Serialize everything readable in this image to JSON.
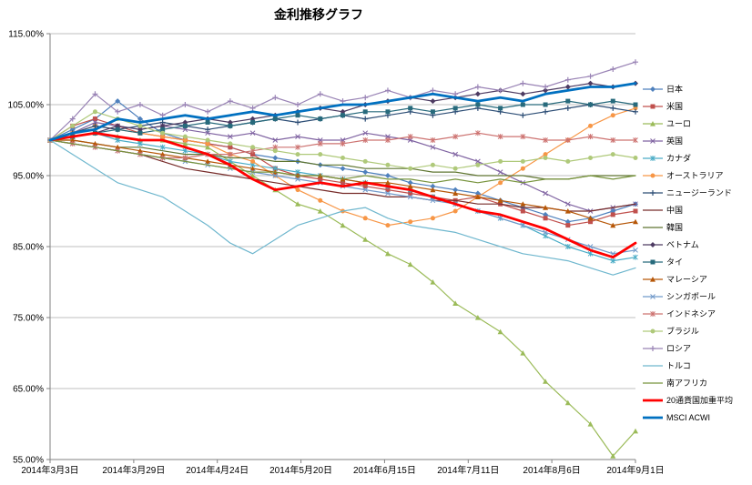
{
  "chart_data": {
    "type": "line",
    "title": "金利推移グラフ",
    "xlabel": "",
    "ylabel": "",
    "grid": true,
    "legend_position": "right",
    "ylim": [
      55,
      115
    ],
    "yticks": [
      55,
      65,
      75,
      85,
      95,
      105,
      115
    ],
    "ytick_labels": [
      "55.00%",
      "65.00%",
      "75.00%",
      "85.00%",
      "95.00%",
      "105.00%",
      "115.00%"
    ],
    "xtick_labels": [
      "2014年3月3日",
      "2014年3月29日",
      "2014年4月24日",
      "2014年5月20日",
      "2014年6月15日",
      "2014年7月11日",
      "2014年8月6日",
      "2014年9月1日"
    ],
    "xtick_pos": [
      0,
      0.1429,
      0.2857,
      0.4286,
      0.5714,
      0.7143,
      0.8571,
      1
    ],
    "x": [
      "2014-03-03",
      "2014-03-10",
      "2014-03-17",
      "2014-03-24",
      "2014-03-31",
      "2014-04-07",
      "2014-04-14",
      "2014-04-21",
      "2014-04-28",
      "2014-05-05",
      "2014-05-12",
      "2014-05-19",
      "2014-05-26",
      "2014-06-02",
      "2014-06-09",
      "2014-06-16",
      "2014-06-23",
      "2014-06-30",
      "2014-07-07",
      "2014-07-14",
      "2014-07-21",
      "2014-07-28",
      "2014-08-04",
      "2014-08-11",
      "2014-08-18",
      "2014-08-25",
      "2014-09-01"
    ],
    "series": [
      {
        "name": "日本",
        "key": "japan",
        "color": "#4F81BD",
        "marker": "diamond",
        "width": 1.2,
        "values": [
          100,
          101.5,
          103,
          105.5,
          103,
          101,
          100,
          99.5,
          99,
          98,
          97.5,
          97,
          96.5,
          96,
          95.5,
          95,
          94,
          93.5,
          93,
          92.5,
          91.5,
          90.5,
          89.5,
          88.5,
          89,
          90,
          91
        ]
      },
      {
        "name": "米国",
        "key": "usa",
        "color": "#C0504D",
        "marker": "square",
        "width": 1.2,
        "values": [
          100,
          102,
          103,
          102,
          101,
          100.5,
          100,
          99.5,
          99,
          98,
          96,
          95,
          94.5,
          94,
          93.5,
          93,
          92.5,
          92,
          91.5,
          92,
          91,
          90,
          89,
          88,
          88.5,
          89.5,
          90
        ]
      },
      {
        "name": "ユーロ",
        "key": "euro",
        "color": "#9BBB59",
        "marker": "triangle",
        "width": 1.2,
        "values": [
          100,
          100.5,
          101,
          100.5,
          100,
          100,
          99.5,
          99,
          97,
          95,
          93,
          91,
          90,
          88,
          86,
          84,
          82.5,
          80,
          77,
          75,
          73,
          70,
          66,
          63,
          60,
          55.5,
          59
        ]
      },
      {
        "name": "英国",
        "key": "uk",
        "color": "#8064A2",
        "marker": "x",
        "width": 1.2,
        "values": [
          100,
          101,
          102.5,
          102,
          101.5,
          102,
          101.5,
          101,
          100.5,
          101,
          100,
          100.5,
          100,
          100,
          101,
          100.5,
          100,
          99,
          98,
          97,
          95.5,
          94,
          92.5,
          91,
          90,
          90.5,
          91
        ]
      },
      {
        "name": "カナダ",
        "key": "canada",
        "color": "#4BACC6",
        "marker": "asterisk",
        "width": 1.2,
        "values": [
          100,
          100.5,
          101,
          100,
          99.5,
          99,
          98.5,
          98,
          97,
          96.5,
          96,
          95.5,
          95,
          94.5,
          94,
          93.5,
          93,
          92,
          91,
          90,
          89,
          88,
          86.5,
          85,
          84,
          83,
          83.5
        ]
      },
      {
        "name": "オーストラリア",
        "key": "australia",
        "color": "#F79646",
        "marker": "circle",
        "width": 1.2,
        "values": [
          100,
          101,
          102,
          101.5,
          101,
          100.5,
          100,
          99.5,
          98,
          97,
          95,
          93,
          91.5,
          90,
          89,
          88,
          88.5,
          89,
          90,
          92,
          94,
          96,
          98,
          100,
          102,
          103.5,
          104.5
        ]
      },
      {
        "name": "ニュージーランド",
        "key": "new-zealand",
        "color": "#2C4D75",
        "marker": "plus",
        "width": 1.2,
        "values": [
          100,
          101,
          102,
          101.5,
          102,
          102.5,
          102,
          101.5,
          102,
          102.5,
          103,
          102.5,
          103,
          103.5,
          103,
          103.5,
          104,
          103.5,
          104,
          104.5,
          104,
          103.5,
          104,
          104.5,
          105,
          104.5,
          104
        ]
      },
      {
        "name": "中国",
        "key": "china",
        "color": "#772C2A",
        "marker": null,
        "width": 1.2,
        "values": [
          100,
          99.5,
          99,
          98.5,
          98,
          97,
          96,
          95.5,
          95,
          94.5,
          94,
          93.5,
          93,
          92.5,
          92.5,
          92,
          92,
          91.5,
          91.5,
          91,
          91,
          90.5,
          90.5,
          90,
          90,
          90.5,
          91
        ]
      },
      {
        "name": "韓国",
        "key": "korea",
        "color": "#5F7530",
        "marker": null,
        "width": 1.2,
        "values": [
          100,
          100,
          99.5,
          99,
          99,
          98.5,
          98,
          98,
          97.5,
          97.5,
          97,
          97,
          96.5,
          96.5,
          96,
          96,
          96,
          95.5,
          95.5,
          95,
          95,
          95,
          94.5,
          94.5,
          95,
          95,
          95
        ]
      },
      {
        "name": "ベトナム",
        "key": "vietnam",
        "color": "#4D3B62",
        "marker": "diamond",
        "width": 1.2,
        "values": [
          100,
          100.5,
          101,
          102,
          101.5,
          102,
          102.5,
          103,
          102.5,
          103,
          103.5,
          104,
          104.5,
          104,
          105,
          105.5,
          106,
          105.5,
          106,
          106.5,
          107,
          106.5,
          107,
          107.5,
          108,
          107.5,
          108
        ]
      },
      {
        "name": "タイ",
        "key": "thailand",
        "color": "#276A7C",
        "marker": "square",
        "width": 1.2,
        "values": [
          100,
          100.5,
          101,
          101.5,
          101,
          101.5,
          102,
          102.5,
          102,
          102.5,
          103,
          103.5,
          103,
          103.5,
          104,
          104,
          104.5,
          104,
          104.5,
          105,
          104.5,
          105,
          105,
          105.5,
          105,
          105.5,
          105
        ]
      },
      {
        "name": "マレーシア",
        "key": "malaysia",
        "color": "#B65708",
        "marker": "triangle",
        "width": 1.2,
        "values": [
          100,
          100,
          99.5,
          99,
          98.5,
          98,
          97.5,
          97,
          96.5,
          96,
          95.5,
          95,
          95,
          94.5,
          94,
          94,
          93.5,
          93,
          92.5,
          92,
          91.5,
          91,
          90.5,
          90,
          89,
          88,
          88.5
        ]
      },
      {
        "name": "シンガポール",
        "key": "singapore",
        "color": "#729ACA",
        "marker": "x",
        "width": 1.2,
        "values": [
          100,
          99.5,
          99,
          98.5,
          98,
          97.5,
          97,
          96.5,
          96,
          95.5,
          95,
          94.5,
          94,
          93.5,
          93,
          92.5,
          92,
          91.5,
          91,
          90,
          89,
          88,
          87,
          86,
          85,
          84,
          84.5
        ]
      },
      {
        "name": "インドネシア",
        "key": "indonesia",
        "color": "#CD7371",
        "marker": "asterisk",
        "width": 1.2,
        "values": [
          100,
          99.5,
          99,
          98.5,
          98,
          97.5,
          97.5,
          98,
          98,
          98.5,
          99,
          99,
          99.5,
          99.5,
          100,
          100,
          100.5,
          100,
          100.5,
          101,
          100.5,
          100.5,
          100,
          100,
          100.5,
          100,
          100
        ]
      },
      {
        "name": "ブラジル",
        "key": "brazil",
        "color": "#AFC97A",
        "marker": "circle",
        "width": 1.2,
        "values": [
          100,
          102,
          104,
          103,
          102,
          101,
          100.5,
          100,
          99.5,
          99,
          98.5,
          98,
          98,
          97.5,
          97,
          96.5,
          96,
          96.5,
          96,
          96.5,
          97,
          97,
          97.5,
          97,
          97.5,
          98,
          97.5
        ]
      },
      {
        "name": "ロシア",
        "key": "russia",
        "color": "#9983B5",
        "marker": "plus",
        "width": 1.2,
        "values": [
          100,
          103,
          106.5,
          104,
          105,
          103.5,
          105,
          104,
          105.5,
          104.5,
          106,
          105,
          106.5,
          105.5,
          106,
          107,
          106,
          107,
          106.5,
          107.5,
          107,
          108,
          107.5,
          108.5,
          109,
          110,
          111
        ]
      },
      {
        "name": "トルコ",
        "key": "turkey",
        "color": "#6FB7CE",
        "marker": null,
        "width": 1.2,
        "values": [
          100,
          98,
          96,
          94,
          93,
          92,
          90,
          88,
          85.5,
          84,
          86,
          88,
          89,
          90,
          90.5,
          89,
          88,
          87.5,
          87,
          86,
          85,
          84,
          83.5,
          83,
          82,
          81,
          82
        ]
      },
      {
        "name": "南アフリカ",
        "key": "south-africa",
        "color": "#77933C",
        "marker": null,
        "width": 1.2,
        "values": [
          100,
          99.5,
          99,
          98.5,
          98,
          97.5,
          97,
          96.5,
          96,
          95.5,
          95.5,
          95,
          95,
          94.5,
          95,
          94.5,
          94.5,
          94,
          94.5,
          94,
          94.5,
          94,
          94.5,
          94.5,
          95,
          94.5,
          95
        ]
      },
      {
        "name": "20通貨国加重平均",
        "key": "weighted-avg-20",
        "color": "#FF0000",
        "marker": null,
        "width": 2.8,
        "values": [
          100,
          100.5,
          101,
          100.5,
          100,
          100,
          99,
          98,
          96.5,
          94.5,
          93,
          93.5,
          94,
          93.5,
          94,
          93.5,
          93,
          92,
          91,
          90,
          89.5,
          88.5,
          87.5,
          86,
          84.5,
          83.5,
          85.5
        ]
      },
      {
        "name": "MSCI ACWI",
        "key": "msci-acwi",
        "color": "#0070C0",
        "marker": null,
        "width": 2.8,
        "values": [
          100,
          101,
          101.5,
          103,
          102.5,
          103,
          103.5,
          103,
          103.5,
          104,
          103.5,
          104,
          104.5,
          105,
          105,
          105.5,
          106,
          106.5,
          106,
          105.5,
          106,
          105.5,
          106.5,
          107,
          107.5,
          107.5,
          108
        ]
      }
    ],
    "colors": {
      "grid": "#BFBFBF",
      "axis": "#808080",
      "text": "#000000",
      "background": "#FFFFFF"
    }
  }
}
